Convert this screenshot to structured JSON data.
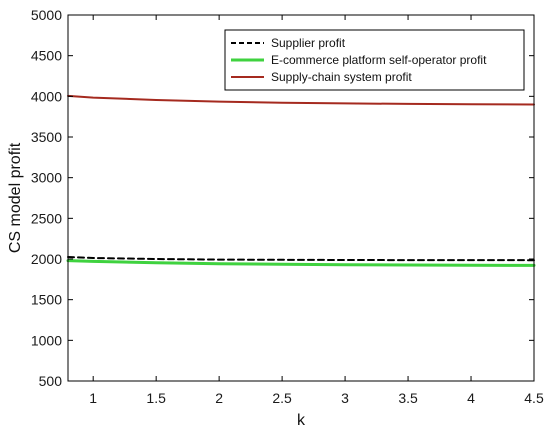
{
  "chart_data": {
    "type": "line",
    "xlabel": "k",
    "ylabel": "CS model profit",
    "xlim": [
      0.8,
      4.5
    ],
    "ylim": [
      500,
      5000
    ],
    "x_ticks": [
      1,
      1.5,
      2,
      2.5,
      3,
      3.5,
      4,
      4.5
    ],
    "y_ticks": [
      500,
      1000,
      1500,
      2000,
      2500,
      3000,
      3500,
      4000,
      4500,
      5000
    ],
    "x_tick_labels": [
      "1",
      "1.5",
      "2",
      "2.5",
      "3",
      "3.5",
      "4",
      "4.5"
    ],
    "y_tick_labels": [
      "500",
      "1000",
      "1500",
      "2000",
      "2500",
      "3000",
      "3500",
      "4000",
      "4500",
      "5000"
    ],
    "grid": false,
    "legend_position": "top-right",
    "x": [
      0.8,
      1.0,
      1.5,
      2.0,
      2.5,
      3.0,
      3.5,
      4.0,
      4.5
    ],
    "series": [
      {
        "name": "Supplier profit",
        "color": "#000000",
        "style": "dashed",
        "values": [
          2025,
          2012,
          2000,
          1993,
          1990,
          1988,
          1987,
          1986,
          1985
        ]
      },
      {
        "name": "E-commerce platform self-operator profit",
        "color": "#3fd23f",
        "style": "solid",
        "values": [
          1980,
          1970,
          1955,
          1942,
          1935,
          1930,
          1926,
          1923,
          1921
        ]
      },
      {
        "name": "Supply-chain system profit",
        "color": "#a52a1f",
        "style": "solid",
        "values": [
          4005,
          3985,
          3955,
          3935,
          3922,
          3913,
          3907,
          3902,
          3900
        ]
      }
    ]
  }
}
